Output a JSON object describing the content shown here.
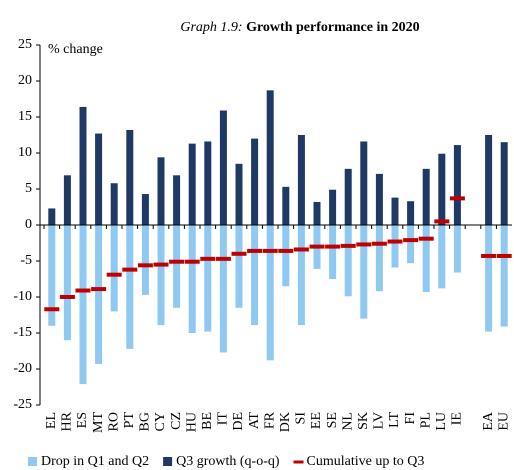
{
  "chart_data": {
    "type": "bar",
    "title_prefix": "Graph 1.9:",
    "title": "Growth performance in 2020",
    "y_label": "% change",
    "categories": [
      "EL",
      "HR",
      "ES",
      "MT",
      "RO",
      "PT",
      "BG",
      "CY",
      "CZ",
      "HU",
      "BE",
      "IT",
      "DE",
      "AT",
      "FR",
      "DK",
      "SI",
      "EE",
      "SE",
      "NL",
      "SK",
      "LV",
      "LT",
      "FI",
      "PL",
      "LU",
      "IE",
      null,
      "EA",
      "EU"
    ],
    "series": [
      {
        "name": "Drop in Q1 and Q2",
        "color": "#8fc8f0",
        "kind": "bar",
        "values": [
          -14.0,
          -16.0,
          -22.1,
          -19.3,
          -12.0,
          -17.2,
          -9.7,
          -13.9,
          -11.5,
          -15.0,
          -14.8,
          -17.7,
          -11.5,
          -13.9,
          -18.8,
          -8.5,
          -13.9,
          -6.1,
          -7.5,
          -9.9,
          -13.0,
          -9.2,
          -5.9,
          -5.3,
          -9.3,
          -8.8,
          -6.6,
          null,
          -14.8,
          -14.1
        ]
      },
      {
        "name": "Q3 growth (q-o-q)",
        "color": "#1f3864",
        "kind": "bar",
        "values": [
          2.3,
          6.9,
          16.4,
          12.7,
          5.8,
          13.2,
          4.3,
          9.4,
          6.9,
          11.3,
          11.6,
          15.9,
          8.5,
          12.0,
          18.7,
          5.3,
          12.5,
          3.2,
          4.9,
          7.8,
          11.6,
          7.1,
          3.8,
          3.3,
          7.8,
          9.9,
          11.1,
          null,
          12.5,
          11.5
        ]
      },
      {
        "name": "Cumulative up to Q3",
        "color": "#c00000",
        "kind": "dash",
        "values": [
          -11.7,
          -10.0,
          -9.1,
          -8.9,
          -6.9,
          -6.2,
          -5.6,
          -5.5,
          -5.1,
          -5.1,
          -4.7,
          -4.7,
          -4.0,
          -3.6,
          -3.6,
          -3.6,
          -3.4,
          -3.0,
          -3.0,
          -2.9,
          -2.7,
          -2.6,
          -2.3,
          -2.1,
          -1.9,
          0.5,
          3.7,
          null,
          -4.3,
          -4.3
        ]
      }
    ],
    "ylim": [
      -25,
      25
    ],
    "yticks": [
      -25,
      -20,
      -15,
      -10,
      -5,
      0,
      5,
      10,
      15,
      20,
      25
    ]
  }
}
